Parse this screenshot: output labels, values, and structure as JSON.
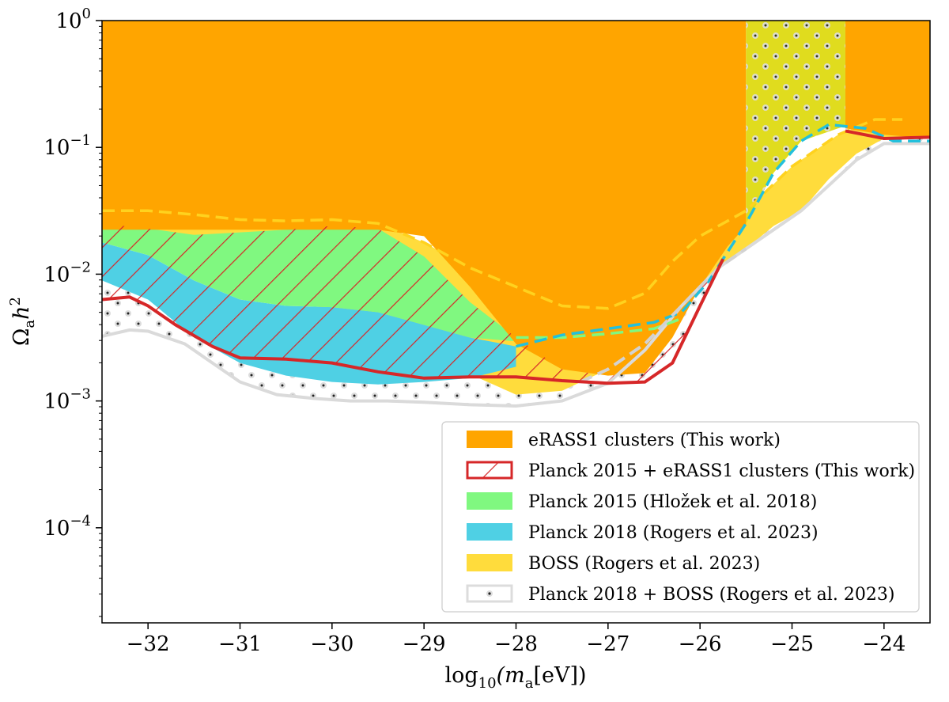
{
  "chart_data": {
    "type": "area",
    "xlabel_main": "log",
    "xlabel_sub": "10",
    "xlabel_open": "(m",
    "xlabel_msub": "a",
    "xlabel_close": "[eV])",
    "ylabel_main": "Ω",
    "ylabel_sub": "a",
    "ylabel_h": "h",
    "ylabel_sup": "2",
    "xlim": [
      -32.5,
      -23.5
    ],
    "ylim_log10": [
      -4.75,
      0
    ],
    "yscale": "log",
    "x_ticks": [
      -32,
      -31,
      -30,
      -29,
      -28,
      -27,
      -26,
      -25,
      -24
    ],
    "x_tick_labels": [
      "−32",
      "−31",
      "−30",
      "−29",
      "−28",
      "−27",
      "−26",
      "−25",
      "−24"
    ],
    "y_ticks_log10": [
      0,
      -1,
      -2,
      -3,
      -4
    ],
    "y_tick_labels": [
      {
        "base": "10",
        "exp": "0"
      },
      {
        "base": "10",
        "exp": "−1"
      },
      {
        "base": "10",
        "exp": "−2"
      },
      {
        "base": "10",
        "exp": "−3"
      },
      {
        "base": "10",
        "exp": "−4"
      }
    ],
    "colors": {
      "erass": "#ffa500",
      "planck2015": "#80f880",
      "planck2018": "#4fd0e4",
      "boss": "#ffdc3c",
      "boss_overlap": "#e0dc1e",
      "red": "#d62728",
      "gray": "#dadada",
      "yellow_dash": "#ffd21e",
      "cyan_dash": "#22c0dc",
      "gray_dash": "#d2d2d2"
    },
    "series": [
      {
        "name": "eRASS1 clusters (This work)",
        "kind": "band",
        "lower_log10": [
          [
            -32.5,
            -1.65
          ],
          [
            -32,
            -1.65
          ],
          [
            -31.5,
            -1.65
          ],
          [
            -31,
            -1.65
          ],
          [
            -30.5,
            -1.65
          ],
          [
            -30,
            -1.65
          ],
          [
            -29.5,
            -1.65
          ],
          [
            -29,
            -1.7
          ],
          [
            -28.5,
            -2.1
          ],
          [
            -28,
            -2.55
          ],
          [
            -27.5,
            -2.75
          ],
          [
            -27,
            -2.8
          ],
          [
            -26.6,
            -2.78
          ],
          [
            -26.3,
            -2.5
          ],
          [
            -26,
            -2.1
          ],
          [
            -25.7,
            -1.78
          ],
          [
            -25.5,
            -1.62
          ],
          [
            -25.5,
            0
          ],
          [
            -24.42,
            0
          ],
          [
            -24.42,
            -0.85
          ],
          [
            -24,
            -0.9
          ],
          [
            -23.5,
            -0.93
          ]
        ],
        "upper_log10": 0
      },
      {
        "name": "Planck 2015 + eRASS1 clusters (This work)",
        "kind": "boundary",
        "line_log10": [
          [
            -32.5,
            -2.2
          ],
          [
            -32.2,
            -2.18
          ],
          [
            -32,
            -2.25
          ],
          [
            -31.7,
            -2.4
          ],
          [
            -31.3,
            -2.57
          ],
          [
            -31,
            -2.66
          ],
          [
            -30.5,
            -2.67
          ],
          [
            -30,
            -2.7
          ],
          [
            -29.5,
            -2.77
          ],
          [
            -29,
            -2.82
          ],
          [
            -28.5,
            -2.81
          ],
          [
            -28,
            -2.81
          ],
          [
            -27.5,
            -2.84
          ],
          [
            -27,
            -2.86
          ],
          [
            -26.6,
            -2.85
          ],
          [
            -26.3,
            -2.7
          ],
          [
            -26,
            -2.25
          ],
          [
            -25.75,
            -1.88
          ]
        ],
        "line2_log10": [
          [
            -24.42,
            -0.87
          ],
          [
            -24,
            -0.93
          ],
          [
            -23.5,
            -0.92
          ]
        ]
      },
      {
        "name": "Planck 2015 (Hložek et al. 2018)",
        "kind": "band",
        "upper_log10": [
          [
            -32.5,
            -1.62
          ],
          [
            -32.2,
            -1.62
          ],
          [
            -31.5,
            -1.69
          ],
          [
            -31,
            -1.67
          ],
          [
            -30.5,
            -1.65
          ],
          [
            -30,
            -1.62
          ],
          [
            -29.5,
            -1.64
          ],
          [
            -29,
            -1.86
          ],
          [
            -28.5,
            -2.22
          ],
          [
            -28,
            -2.5
          ],
          [
            -27.5,
            -2.5
          ],
          [
            -27,
            -2.47
          ],
          [
            -26.5,
            -2.43
          ],
          [
            -26.2,
            -2.35
          ]
        ],
        "lower_log10": [
          [
            -32.5,
            -1.75
          ],
          [
            -32,
            -1.85
          ],
          [
            -31.5,
            -2.05
          ],
          [
            -31,
            -2.2
          ],
          [
            -30.5,
            -2.25
          ],
          [
            -30,
            -2.26
          ],
          [
            -29.5,
            -2.3
          ],
          [
            -29,
            -2.4
          ],
          [
            -28.5,
            -2.5
          ],
          [
            -28,
            -2.53
          ]
        ]
      },
      {
        "name": "Planck 2018 (Rogers et al. 2023)",
        "kind": "band",
        "upper_log10": [
          [
            -32.5,
            -1.75
          ],
          [
            -32,
            -1.85
          ],
          [
            -31.5,
            -2.05
          ],
          [
            -31,
            -2.2
          ],
          [
            -30.5,
            -2.25
          ],
          [
            -30,
            -2.26
          ],
          [
            -29.5,
            -2.3
          ],
          [
            -29,
            -2.4
          ],
          [
            -28.5,
            -2.5
          ],
          [
            -28,
            -2.57
          ],
          [
            -27.5,
            -2.48
          ],
          [
            -27,
            -2.43
          ],
          [
            -26.5,
            -2.38
          ],
          [
            -26.2,
            -2.3
          ],
          [
            -25.9,
            -2.05
          ],
          [
            -25.5,
            -1.6
          ],
          [
            -25.2,
            -1.2
          ],
          [
            -24.9,
            -0.95
          ],
          [
            -24.6,
            -0.82
          ],
          [
            -24.2,
            -0.85
          ],
          [
            -23.9,
            -0.95
          ],
          [
            -23.5,
            -0.95
          ]
        ],
        "lower_log10": [
          [
            -32.5,
            -2.05
          ],
          [
            -32,
            -2.2
          ],
          [
            -31.5,
            -2.5
          ],
          [
            -31,
            -2.7
          ],
          [
            -30.5,
            -2.8
          ],
          [
            -30,
            -2.85
          ],
          [
            -29.5,
            -2.87
          ],
          [
            -29,
            -2.85
          ],
          [
            -28.5,
            -2.82
          ],
          [
            -28,
            -2.73
          ]
        ]
      },
      {
        "name": "BOSS (Rogers et al. 2023)",
        "kind": "band",
        "upper_log10": [
          [
            -32.5,
            -1.5
          ],
          [
            -32,
            -1.5
          ],
          [
            -31.5,
            -1.53
          ],
          [
            -31,
            -1.57
          ],
          [
            -30.5,
            -1.58
          ],
          [
            -30,
            -1.57
          ],
          [
            -29.5,
            -1.6
          ],
          [
            -29,
            -1.75
          ],
          [
            -28.5,
            -1.95
          ],
          [
            -28,
            -2.1
          ],
          [
            -27.5,
            -2.25
          ],
          [
            -27,
            -2.27
          ],
          [
            -26.6,
            -2.15
          ],
          [
            -26.3,
            -1.9
          ],
          [
            -26,
            -1.7
          ],
          [
            -25.5,
            -1.5
          ],
          [
            -25,
            -1.15
          ],
          [
            -24.5,
            -0.9
          ],
          [
            -24.1,
            -0.78
          ],
          [
            -23.8,
            -0.78
          ]
        ],
        "lower_log10": [
          [
            -28,
            -2.95
          ],
          [
            -27.5,
            -2.92
          ],
          [
            -27,
            -2.75
          ],
          [
            -26.6,
            -2.55
          ],
          [
            -26.2,
            -2.25
          ],
          [
            -25.8,
            -1.95
          ],
          [
            -25.5,
            -1.8
          ],
          [
            -25.2,
            -1.62
          ],
          [
            -24.9,
            -1.5
          ],
          [
            -24.6,
            -1.25
          ],
          [
            -24.3,
            -1.05
          ],
          [
            -24,
            -0.93
          ],
          [
            -23.5,
            -0.93
          ]
        ]
      },
      {
        "name": "Planck 2018 + BOSS (Rogers et al. 2023)",
        "kind": "band",
        "line_log10": [
          [
            -32.5,
            -2.49
          ],
          [
            -32.2,
            -2.44
          ],
          [
            -32,
            -2.45
          ],
          [
            -31.6,
            -2.55
          ],
          [
            -31.3,
            -2.7
          ],
          [
            -31,
            -2.85
          ],
          [
            -30.6,
            -2.95
          ],
          [
            -30.2,
            -2.98
          ],
          [
            -29.8,
            -3
          ],
          [
            -29.4,
            -3
          ],
          [
            -29,
            -3.01
          ],
          [
            -28.5,
            -3.03
          ],
          [
            -28,
            -3.04
          ],
          [
            -27.5,
            -3
          ],
          [
            -27,
            -2.86
          ],
          [
            -26.6,
            -2.6
          ],
          [
            -26.2,
            -2.25
          ],
          [
            -25.8,
            -1.95
          ],
          [
            -25.5,
            -1.8
          ],
          [
            -25.2,
            -1.65
          ],
          [
            -24.9,
            -1.5
          ],
          [
            -24.6,
            -1.3
          ],
          [
            -24.3,
            -1.1
          ],
          [
            -24,
            -0.97
          ],
          [
            -23.5,
            -0.97
          ]
        ],
        "upper_log10": [
          [
            -32.5,
            -2.05
          ],
          [
            -32,
            -2.2
          ],
          [
            -31.5,
            -2.5
          ],
          [
            -31,
            -2.7
          ],
          [
            -30.5,
            -2.8
          ],
          [
            -30,
            -2.85
          ],
          [
            -29.5,
            -2.87
          ],
          [
            -29,
            -2.85
          ],
          [
            -28.5,
            -2.82
          ],
          [
            -28,
            -2.73
          ],
          [
            -27.5,
            -2.85
          ],
          [
            -27,
            -2.86
          ],
          [
            -26.6,
            -2.85
          ],
          [
            -26.3,
            -2.7
          ],
          [
            -26,
            -2.25
          ],
          [
            -25.75,
            -1.88
          ],
          [
            -25.5,
            -1.62
          ],
          [
            -25,
            -1.48
          ],
          [
            -24.6,
            -1.25
          ],
          [
            -24.3,
            -1.0
          ],
          [
            -24,
            -0.93
          ],
          [
            -23.5,
            -0.93
          ]
        ]
      }
    ],
    "legend": [
      {
        "label": "eRASS1 clusters (This work)",
        "style": "orange-fill"
      },
      {
        "label": "Planck 2015 + eRASS1 clusters (This work)",
        "style": "red-hatch"
      },
      {
        "label": "Planck 2015 (Hložek et al. 2018)",
        "style": "green-fill"
      },
      {
        "label": "Planck 2018 (Rogers et al. 2023)",
        "style": "cyan-fill"
      },
      {
        "label": "BOSS (Rogers et al. 2023)",
        "style": "yellow-fill"
      },
      {
        "label": "Planck 2018 + BOSS (Rogers et al. 2023)",
        "style": "gray-dots"
      }
    ],
    "legend_position": "lower-right"
  }
}
